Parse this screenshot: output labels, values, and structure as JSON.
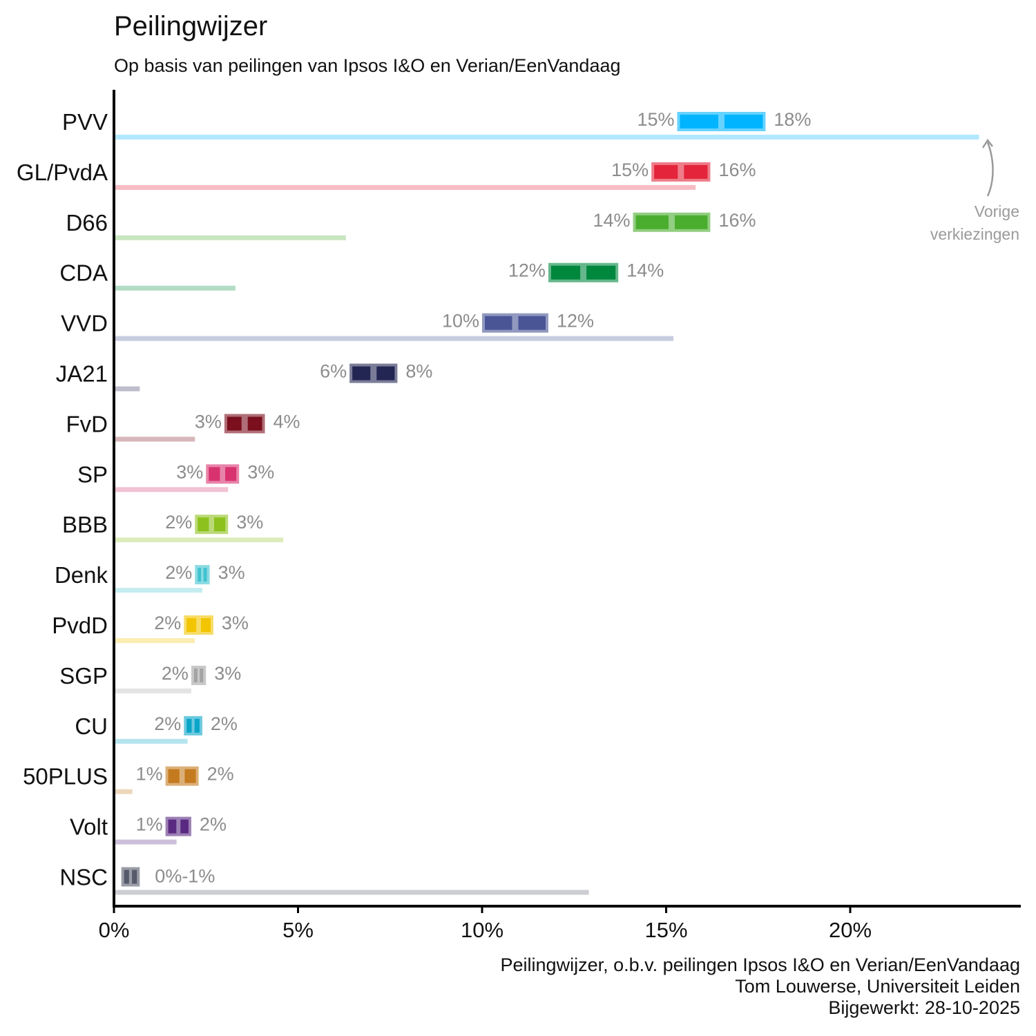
{
  "header": {
    "title": "Peilingwijzer",
    "subtitle": "Op basis van peilingen van Ipsos I&O en Verian/EenVandaag"
  },
  "annotation": {
    "line1": "Vorige",
    "line2": "verkiezingen"
  },
  "source": {
    "line1": "Peilingwijzer, o.b.v. peilingen Ipsos I&O en Verian/EenVandaag",
    "line2": "Tom Louwerse, Universiteit Leiden",
    "line3": "Bijgewerkt: 28-10-2025"
  },
  "chart_data": {
    "type": "bar",
    "title": "Peilingwijzer",
    "subtitle": "Op basis van peilingen van Ipsos I&O en Verian/EenVandaag",
    "xlim": [
      0,
      24.6
    ],
    "x_ticks": [
      0,
      5,
      10,
      15,
      20
    ],
    "x_tick_labels": [
      "0%",
      "5%",
      "10%",
      "15%",
      "20%"
    ],
    "grid": false,
    "categories": [
      "PVV",
      "GL/PvdA",
      "D66",
      "CDA",
      "VVD",
      "JA21",
      "FvD",
      "SP",
      "BBB",
      "Denk",
      "PvdD",
      "SGP",
      "CU",
      "50PLUS",
      "Volt",
      "NSC"
    ],
    "series": [
      {
        "name": "Vorige verkiezingen",
        "values": [
          23.5,
          15.8,
          6.3,
          3.3,
          15.2,
          0.7,
          2.2,
          3.1,
          4.6,
          2.4,
          2.2,
          2.1,
          2.0,
          0.5,
          1.7,
          12.9
        ]
      }
    ],
    "ranges": [
      {
        "party": "PVV",
        "low": 15.3,
        "high": 17.7,
        "low_label": "15%",
        "high_label": "18%",
        "color": "#00b4ff"
      },
      {
        "party": "GL/PvdA",
        "low": 14.6,
        "high": 16.2,
        "low_label": "15%",
        "high_label": "16%",
        "color": "#e3243b"
      },
      {
        "party": "D66",
        "low": 14.1,
        "high": 16.2,
        "low_label": "14%",
        "high_label": "16%",
        "color": "#4aad2e"
      },
      {
        "party": "CDA",
        "low": 11.8,
        "high": 13.7,
        "low_label": "12%",
        "high_label": "14%",
        "color": "#00873e"
      },
      {
        "party": "VVD",
        "low": 10.0,
        "high": 11.8,
        "low_label": "10%",
        "high_label": "12%",
        "color": "#4a5596"
      },
      {
        "party": "JA21",
        "low": 6.4,
        "high": 7.7,
        "low_label": "6%",
        "high_label": "8%",
        "color": "#232653"
      },
      {
        "party": "FvD",
        "low": 3.0,
        "high": 4.1,
        "low_label": "3%",
        "high_label": "4%",
        "color": "#7b0f1e"
      },
      {
        "party": "SP",
        "low": 2.5,
        "high": 3.4,
        "low_label": "3%",
        "high_label": "3%",
        "color": "#d8326f"
      },
      {
        "party": "BBB",
        "low": 2.2,
        "high": 3.1,
        "low_label": "2%",
        "high_label": "3%",
        "color": "#8dc11d"
      },
      {
        "party": "Denk",
        "low": 2.2,
        "high": 2.6,
        "low_label": "2%",
        "high_label": "3%",
        "color": "#40c3cf"
      },
      {
        "party": "PvdD",
        "low": 1.9,
        "high": 2.7,
        "low_label": "2%",
        "high_label": "3%",
        "color": "#f2c500"
      },
      {
        "party": "SGP",
        "low": 2.1,
        "high": 2.5,
        "low_label": "2%",
        "high_label": "3%",
        "color": "#a3a3a3"
      },
      {
        "party": "CU",
        "low": 1.9,
        "high": 2.4,
        "low_label": "2%",
        "high_label": "2%",
        "color": "#0aa5c8"
      },
      {
        "party": "50PLUS",
        "low": 1.4,
        "high": 2.3,
        "low_label": "1%",
        "high_label": "2%",
        "color": "#c47a1e"
      },
      {
        "party": "Volt",
        "low": 1.4,
        "high": 2.1,
        "low_label": "1%",
        "high_label": "2%",
        "color": "#5a2a82"
      },
      {
        "party": "NSC",
        "low": 0.2,
        "high": 0.7,
        "label": "0%-1%",
        "color": "#565a6a"
      }
    ]
  }
}
